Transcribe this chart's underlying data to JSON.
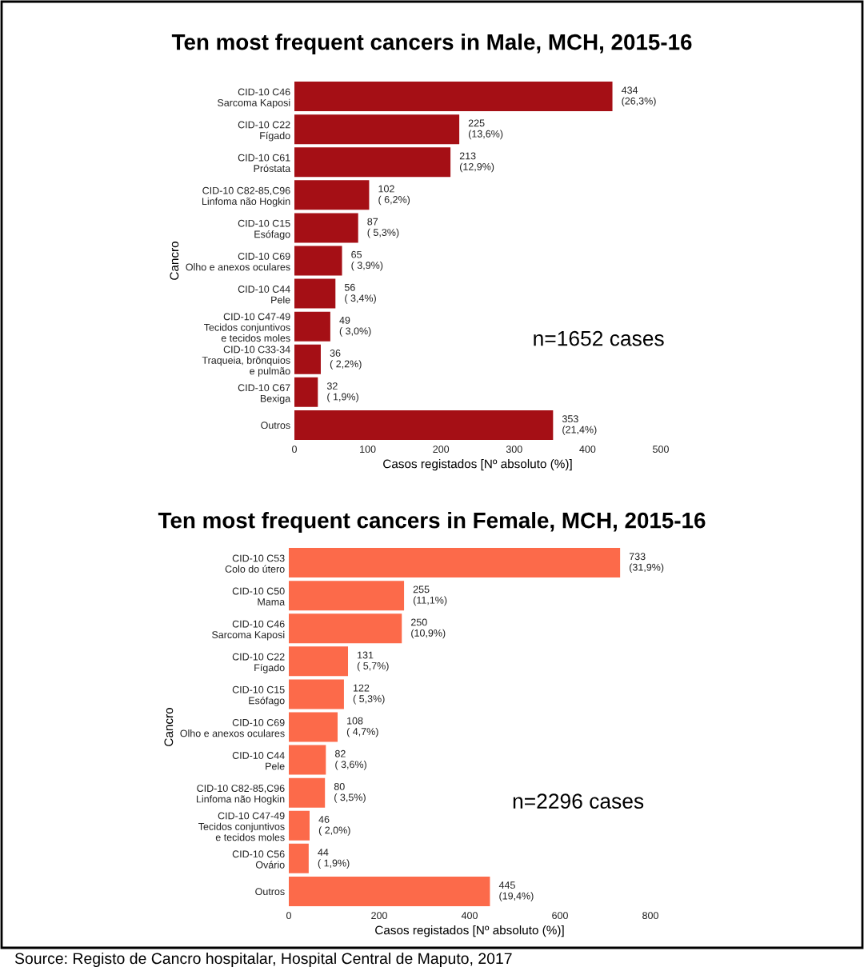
{
  "chart_data": [
    {
      "type": "bar",
      "orientation": "horizontal",
      "title": "Ten most frequent cancers in Male, MCH, 2015-16",
      "xlabel": "Casos registados [Nº absoluto (%)]",
      "ylabel": "Cancro",
      "categories": [
        "CID-10 C46\nSarcoma Kaposi",
        "CID-10 C22\nFígado",
        "CID-10 C61\nPróstata",
        "CID-10 C82-85,C96\nLinfoma não Hogkin",
        "CID-10 C15\nEsófago",
        "CID-10 C69\nOlho e anexos oculares",
        "CID-10 C44\nPele",
        "CID-10 C47-49\nTecidos conjuntivos\ne tecidos moles",
        "CID-10 C33-34\nTraqueia, brônquios\ne pulmão",
        "CID-10 C67\nBexiga",
        "Outros"
      ],
      "values": [
        434,
        225,
        213,
        102,
        87,
        65,
        56,
        49,
        36,
        32,
        353
      ],
      "value_labels": [
        "434\n(26,3%)",
        "225\n(13,6%)",
        "213\n(12,9%)",
        "102\n( 6,2%)",
        "87\n( 5,3%)",
        "65\n( 3,9%)",
        "56\n( 3,4%)",
        "49\n( 3,0%)",
        "36\n( 2,2%)",
        "32\n( 1,9%)",
        "353\n(21,4%)"
      ],
      "color": "#a50f15",
      "xlim": [
        0,
        500
      ],
      "xticks": [
        0,
        100,
        200,
        300,
        400,
        500
      ],
      "grid": false,
      "legend": false,
      "annotations": [
        "n=1652 cases"
      ]
    },
    {
      "type": "bar",
      "orientation": "horizontal",
      "title": "Ten most frequent cancers in Female, MCH, 2015-16",
      "xlabel": "Casos registados [Nº absoluto (%)]",
      "ylabel": "Cancro",
      "categories": [
        "CID-10 C53\nColo do útero",
        "CID-10 C50\nMama",
        "CID-10 C46\nSarcoma Kaposi",
        "CID-10 C22\nFígado",
        "CID-10 C15\nEsófago",
        "CID-10 C69\nOlho e anexos oculares",
        "CID-10 C44\nPele",
        "CID-10 C82-85,C96\nLinfoma não Hogkin",
        "CID-10 C47-49\nTecidos conjuntivos\ne tecidos moles",
        "CID-10 C56\nOvário",
        "Outros"
      ],
      "values": [
        733,
        255,
        250,
        131,
        122,
        108,
        82,
        80,
        46,
        44,
        445
      ],
      "value_labels": [
        "733\n(31,9%)",
        "255\n(11,1%)",
        "250\n(10,9%)",
        "131\n( 5,7%)",
        "122\n( 5,3%)",
        "108\n( 4,7%)",
        "82\n( 3,6%)",
        "80\n( 3,5%)",
        "46\n( 2,0%)",
        "44\n( 1,9%)",
        "445\n(19,4%)"
      ],
      "color": "#fc6a4a",
      "xlim": [
        0,
        800
      ],
      "xticks": [
        0,
        200,
        400,
        600,
        800
      ],
      "grid": false,
      "legend": false,
      "annotations": [
        "n=2296 cases",
        "Source: Registo de Cancro hospitalar, Hospital Central de Maputo, 2017"
      ]
    }
  ]
}
